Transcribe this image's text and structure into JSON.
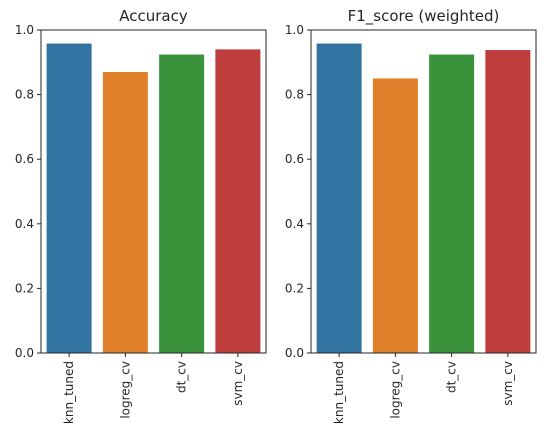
{
  "chart_data": [
    {
      "type": "bar",
      "title": "Accuracy",
      "xlabel": "",
      "ylabel": "",
      "categories": [
        "knn_tuned",
        "logreg_cv",
        "dt_cv",
        "svm_cv"
      ],
      "values": [
        0.958,
        0.87,
        0.924,
        0.94
      ],
      "colors": [
        "#3274a1",
        "#e1812c",
        "#3a923a",
        "#c03d3e"
      ],
      "ylim": [
        0,
        1.0
      ],
      "yticks": [
        "0.0",
        "0.2",
        "0.4",
        "0.6",
        "0.8",
        "1.0"
      ],
      "grid": false
    },
    {
      "type": "bar",
      "title": "F1_score (weighted)",
      "xlabel": "",
      "ylabel": "",
      "categories": [
        "knn_tuned",
        "logreg_cv",
        "dt_cv",
        "svm_cv"
      ],
      "values": [
        0.958,
        0.85,
        0.924,
        0.938
      ],
      "colors": [
        "#3274a1",
        "#e1812c",
        "#3a923a",
        "#c03d3e"
      ],
      "ylim": [
        0,
        1.0
      ],
      "yticks": [
        "0.0",
        "0.2",
        "0.4",
        "0.6",
        "0.8",
        "1.0"
      ],
      "grid": false
    }
  ]
}
